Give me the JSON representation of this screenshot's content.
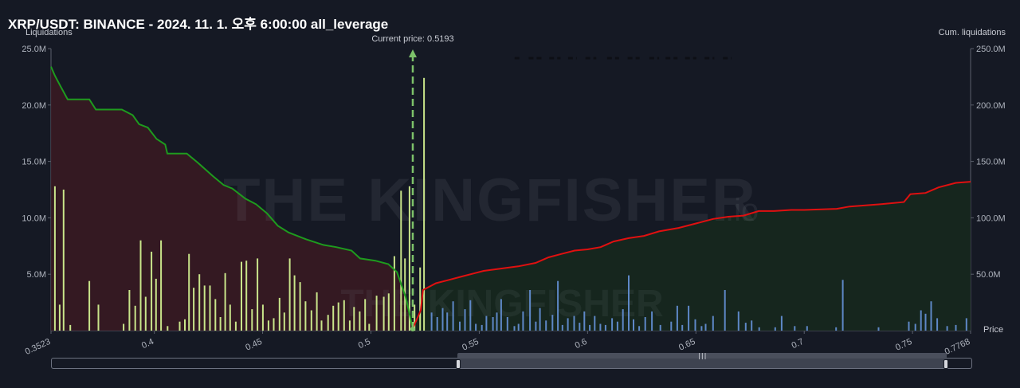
{
  "title": "XRP/USDT: BINANCE - 2024. 11. 1. 오후 6:00:00 all_leverage",
  "watermark": "THE KINGFISHER",
  "watermark_suffix": ".io",
  "colors": {
    "background": "#151924",
    "long_line": "#1e9b1e",
    "long_fill": "#3a1a22",
    "short_line": "#e01010",
    "short_fill": "#16271f",
    "bar_long": "#c9e58a",
    "bar_short": "#5e88c7",
    "current_price": "#7dc26a"
  },
  "chart_data": {
    "type": "bar",
    "left_axis_label": "Liquidations",
    "right_axis_label": "Cum. liquidations",
    "x_axis_label": "Price",
    "current_price_label": "Current price: 0.5193",
    "current_price": 0.5193,
    "xlim": [
      0.3523,
      0.7768
    ],
    "ylim_left": [
      0,
      25000000
    ],
    "ylim_right": [
      0,
      250000000
    ],
    "x_ticks": [
      {
        "value": 0.3523,
        "label": "0.3523"
      },
      {
        "value": 0.4,
        "label": "0.4"
      },
      {
        "value": 0.45,
        "label": "0.45"
      },
      {
        "value": 0.5,
        "label": "0.5"
      },
      {
        "value": 0.55,
        "label": "0.55"
      },
      {
        "value": 0.6,
        "label": "0.6"
      },
      {
        "value": 0.65,
        "label": "0.65"
      },
      {
        "value": 0.7,
        "label": "0.7"
      },
      {
        "value": 0.75,
        "label": "0.75"
      },
      {
        "value": 0.7768,
        "label": "0.7768"
      }
    ],
    "y_ticks_left": [
      {
        "value": 5000000,
        "label": "5.0M"
      },
      {
        "value": 10000000,
        "label": "10.0M"
      },
      {
        "value": 15000000,
        "label": "15.0M"
      },
      {
        "value": 20000000,
        "label": "20.0M"
      },
      {
        "value": 25000000,
        "label": "25.0M"
      }
    ],
    "y_ticks_right": [
      {
        "value": 50000000,
        "label": "50.0M"
      },
      {
        "value": 100000000,
        "label": "100.0M"
      },
      {
        "value": 150000000,
        "label": "150.0M"
      },
      {
        "value": 200000000,
        "label": "200.0M"
      },
      {
        "value": 250000000,
        "label": "250.0M"
      }
    ],
    "bars_long": [
      [
        0.3541,
        12.8
      ],
      [
        0.3563,
        2.3
      ],
      [
        0.3581,
        12.5
      ],
      [
        0.3612,
        0.5
      ],
      [
        0.37,
        4.4
      ],
      [
        0.3742,
        2.3
      ],
      [
        0.3858,
        0.6
      ],
      [
        0.3885,
        3.6
      ],
      [
        0.3912,
        2.2
      ],
      [
        0.3937,
        8.0
      ],
      [
        0.396,
        3.0
      ],
      [
        0.3987,
        7.0
      ],
      [
        0.4008,
        4.6
      ],
      [
        0.4031,
        8.0
      ],
      [
        0.4061,
        0.4
      ],
      [
        0.4117,
        0.8
      ],
      [
        0.4141,
        1.0
      ],
      [
        0.416,
        6.8
      ],
      [
        0.4182,
        3.8
      ],
      [
        0.4208,
        5.0
      ],
      [
        0.4232,
        4.0
      ],
      [
        0.4257,
        4.0
      ],
      [
        0.4282,
        2.8
      ],
      [
        0.4305,
        1.2
      ],
      [
        0.4327,
        5.1
      ],
      [
        0.435,
        2.3
      ],
      [
        0.4376,
        0.8
      ],
      [
        0.4402,
        6.1
      ],
      [
        0.4425,
        6.2
      ],
      [
        0.4451,
        1.9
      ],
      [
        0.4476,
        6.4
      ],
      [
        0.4501,
        2.3
      ],
      [
        0.4527,
        0.9
      ],
      [
        0.4551,
        1.1
      ],
      [
        0.4578,
        2.9
      ],
      [
        0.46,
        1.6
      ],
      [
        0.4625,
        6.4
      ],
      [
        0.4647,
        4.9
      ],
      [
        0.4673,
        4.3
      ],
      [
        0.4698,
        2.6
      ],
      [
        0.4725,
        1.8
      ],
      [
        0.475,
        3.4
      ],
      [
        0.4772,
        0.9
      ],
      [
        0.4802,
        1.4
      ],
      [
        0.4826,
        2.2
      ],
      [
        0.485,
        2.5
      ],
      [
        0.4876,
        2.7
      ],
      [
        0.4902,
        0.9
      ],
      [
        0.4922,
        2.1
      ],
      [
        0.4948,
        1.7
      ],
      [
        0.4973,
        2.8
      ],
      [
        0.4992,
        0.6
      ],
      [
        0.5026,
        3.1
      ],
      [
        0.5059,
        3.0
      ],
      [
        0.5082,
        3.3
      ],
      [
        0.5108,
        6.6
      ],
      [
        0.5139,
        12.4
      ],
      [
        0.5157,
        6.4
      ],
      [
        0.5178,
        12.8
      ],
      [
        0.5201,
        2.3
      ],
      [
        0.5227,
        5.6
      ],
      [
        0.5245,
        22.4
      ]
    ],
    "bars_short": [
      [
        0.528,
        1.6
      ],
      [
        0.5306,
        1.2
      ],
      [
        0.5331,
        2.0
      ],
      [
        0.5352,
        1.6
      ],
      [
        0.5379,
        2.6
      ],
      [
        0.541,
        0.8
      ],
      [
        0.5434,
        1.9
      ],
      [
        0.5459,
        2.7
      ],
      [
        0.5484,
        0.6
      ],
      [
        0.5512,
        0.5
      ],
      [
        0.5533,
        1.3
      ],
      [
        0.5563,
        1.2
      ],
      [
        0.5581,
        1.6
      ],
      [
        0.5601,
        2.8
      ],
      [
        0.563,
        1.2
      ],
      [
        0.5662,
        0.4
      ],
      [
        0.5681,
        0.6
      ],
      [
        0.5702,
        1.7
      ],
      [
        0.5734,
        3.6
      ],
      [
        0.5761,
        0.8
      ],
      [
        0.578,
        2.0
      ],
      [
        0.5808,
        0.9
      ],
      [
        0.5838,
        1.4
      ],
      [
        0.5863,
        4.4
      ],
      [
        0.5884,
        0.5
      ],
      [
        0.5909,
        1.1
      ],
      [
        0.5938,
        1.3
      ],
      [
        0.5963,
        0.7
      ],
      [
        0.5985,
        1.7
      ],
      [
        0.601,
        0.5
      ],
      [
        0.6033,
        1.3
      ],
      [
        0.6059,
        0.6
      ],
      [
        0.6083,
        0.5
      ],
      [
        0.6113,
        1.1
      ],
      [
        0.6138,
        0.8
      ],
      [
        0.6163,
        1.9
      ],
      [
        0.619,
        4.9
      ],
      [
        0.6212,
        1.0
      ],
      [
        0.6238,
        0.4
      ],
      [
        0.6266,
        1.2
      ],
      [
        0.6297,
        1.7
      ],
      [
        0.6336,
        0.5
      ],
      [
        0.6386,
        0.8
      ],
      [
        0.6414,
        2.2
      ],
      [
        0.6437,
        0.5
      ],
      [
        0.6466,
        2.2
      ],
      [
        0.6497,
        1.0
      ],
      [
        0.6526,
        0.4
      ],
      [
        0.6545,
        0.6
      ],
      [
        0.6579,
        1.3
      ],
      [
        0.6634,
        3.6
      ],
      [
        0.6697,
        1.7
      ],
      [
        0.673,
        0.7
      ],
      [
        0.6757,
        0.9
      ],
      [
        0.6792,
        0.3
      ],
      [
        0.6866,
        0.3
      ],
      [
        0.6896,
        1.3
      ],
      [
        0.6956,
        0.4
      ],
      [
        0.7013,
        0.4
      ],
      [
        0.7147,
        0.3
      ],
      [
        0.7178,
        4.5
      ],
      [
        0.7343,
        0.3
      ],
      [
        0.7483,
        0.8
      ],
      [
        0.7513,
        0.6
      ],
      [
        0.7539,
        1.8
      ],
      [
        0.756,
        1.5
      ],
      [
        0.7586,
        2.6
      ],
      [
        0.7614,
        1.1
      ],
      [
        0.766,
        0.4
      ],
      [
        0.77,
        0.5
      ],
      [
        0.7749,
        1.1
      ]
    ],
    "cumulative_long": [
      [
        0.3523,
        234
      ],
      [
        0.3541,
        226
      ],
      [
        0.3563,
        218
      ],
      [
        0.36,
        205
      ],
      [
        0.37,
        205
      ],
      [
        0.373,
        196
      ],
      [
        0.385,
        196
      ],
      [
        0.39,
        191
      ],
      [
        0.393,
        183
      ],
      [
        0.397,
        180
      ],
      [
        0.401,
        170
      ],
      [
        0.405,
        165
      ],
      [
        0.406,
        157
      ],
      [
        0.415,
        157
      ],
      [
        0.42,
        149
      ],
      [
        0.427,
        137
      ],
      [
        0.432,
        129
      ],
      [
        0.436,
        126
      ],
      [
        0.442,
        117
      ],
      [
        0.447,
        112
      ],
      [
        0.452,
        104
      ],
      [
        0.457,
        93
      ],
      [
        0.462,
        87
      ],
      [
        0.47,
        81
      ],
      [
        0.478,
        76
      ],
      [
        0.484,
        74
      ],
      [
        0.491,
        71
      ],
      [
        0.495,
        64
      ],
      [
        0.502,
        62
      ],
      [
        0.508,
        59
      ],
      [
        0.512,
        52
      ],
      [
        0.516,
        30
      ],
      [
        0.5193,
        2
      ]
    ],
    "cumulative_short": [
      [
        0.5193,
        2
      ],
      [
        0.523,
        18
      ],
      [
        0.524,
        36
      ],
      [
        0.53,
        42
      ],
      [
        0.536,
        45
      ],
      [
        0.542,
        48
      ],
      [
        0.548,
        51
      ],
      [
        0.552,
        53
      ],
      [
        0.56,
        55
      ],
      [
        0.568,
        57
      ],
      [
        0.576,
        60
      ],
      [
        0.582,
        65
      ],
      [
        0.588,
        68
      ],
      [
        0.594,
        71
      ],
      [
        0.6,
        72
      ],
      [
        0.606,
        74
      ],
      [
        0.612,
        79
      ],
      [
        0.619,
        82
      ],
      [
        0.626,
        84
      ],
      [
        0.633,
        88
      ],
      [
        0.642,
        91
      ],
      [
        0.65,
        95
      ],
      [
        0.658,
        99
      ],
      [
        0.665,
        101
      ],
      [
        0.672,
        102
      ],
      [
        0.679,
        106
      ],
      [
        0.686,
        106
      ],
      [
        0.694,
        107
      ],
      [
        0.7,
        107
      ],
      [
        0.715,
        108
      ],
      [
        0.721,
        110
      ],
      [
        0.735,
        112
      ],
      [
        0.746,
        114
      ],
      [
        0.749,
        121
      ],
      [
        0.756,
        122
      ],
      [
        0.762,
        127
      ],
      [
        0.77,
        131
      ],
      [
        0.7768,
        132
      ]
    ],
    "dash_segments": [
      [
        0.5663,
        0.5693
      ],
      [
        0.5728,
        0.5788
      ],
      [
        0.5823,
        0.5875
      ],
      [
        0.591,
        0.595
      ],
      [
        0.599,
        0.604
      ],
      [
        0.609,
        0.6145
      ],
      [
        0.6185,
        0.624
      ],
      [
        0.6285,
        0.633
      ],
      [
        0.636,
        0.6415
      ],
      [
        0.645,
        0.6502
      ],
      [
        0.654,
        0.6585
      ],
      [
        0.6625,
        0.6665
      ]
    ]
  }
}
